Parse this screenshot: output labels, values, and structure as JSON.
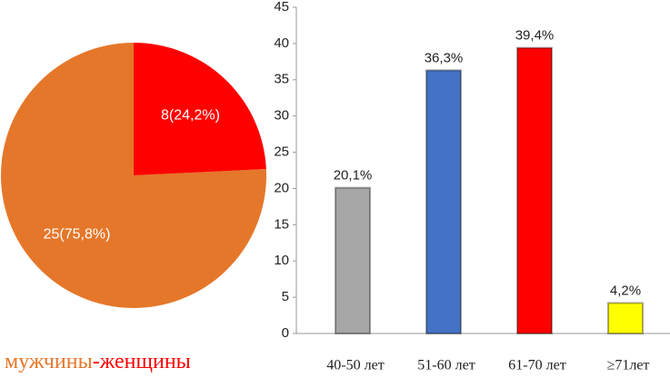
{
  "chart_data": [
    {
      "type": "pie",
      "categories": [
        "мужчины",
        "женщины"
      ],
      "values": [
        25,
        8
      ],
      "value_labels": [
        "25(75,8%)",
        "8(24,2%)"
      ],
      "colors": [
        "#e5772a",
        "#ff0000"
      ],
      "legend_separator": "-"
    },
    {
      "type": "bar",
      "categories": [
        "40-50 лет",
        "51-60 лет",
        "61-70 лет",
        "≥71лет"
      ],
      "values": [
        20.1,
        36.3,
        39.4,
        4.2
      ],
      "value_labels": [
        "20,1%",
        "36,3%",
        "39,4%",
        "4,2%"
      ],
      "colors": [
        "#a6a6a6",
        "#4472c4",
        "#ff0000",
        "#ffff00"
      ],
      "ylim": [
        0,
        45
      ],
      "yticks": [
        0,
        5,
        10,
        15,
        20,
        25,
        30,
        35,
        40,
        45
      ],
      "grid": false
    }
  ]
}
